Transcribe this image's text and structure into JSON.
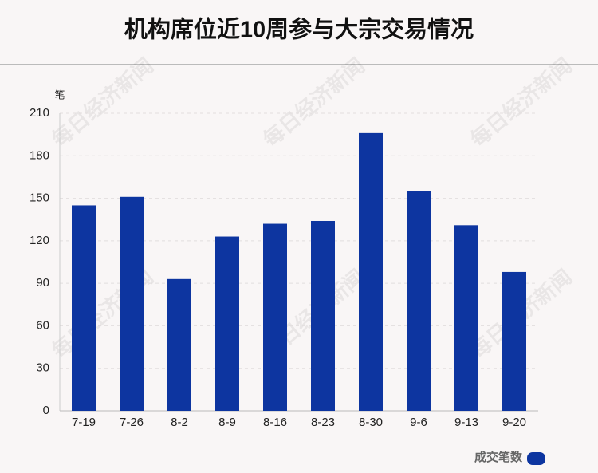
{
  "chart_data": {
    "type": "bar",
    "title": "机构席位近10周参与大宗交易情况",
    "y_label": "笔",
    "categories": [
      "7-19",
      "7-26",
      "8-2",
      "8-9",
      "8-16",
      "8-23",
      "8-30",
      "9-6",
      "9-13",
      "9-20"
    ],
    "series": [
      {
        "name": "成交笔数",
        "color": "#0d35a0",
        "values": [
          145,
          151,
          93,
          123,
          132,
          134,
          196,
          155,
          131,
          98
        ]
      }
    ],
    "ylim": [
      0,
      210
    ],
    "yticks": [
      0,
      30,
      60,
      90,
      120,
      150,
      180,
      210
    ],
    "grid": true,
    "legend": "bottom-right",
    "watermark": "每日经济新闻"
  }
}
